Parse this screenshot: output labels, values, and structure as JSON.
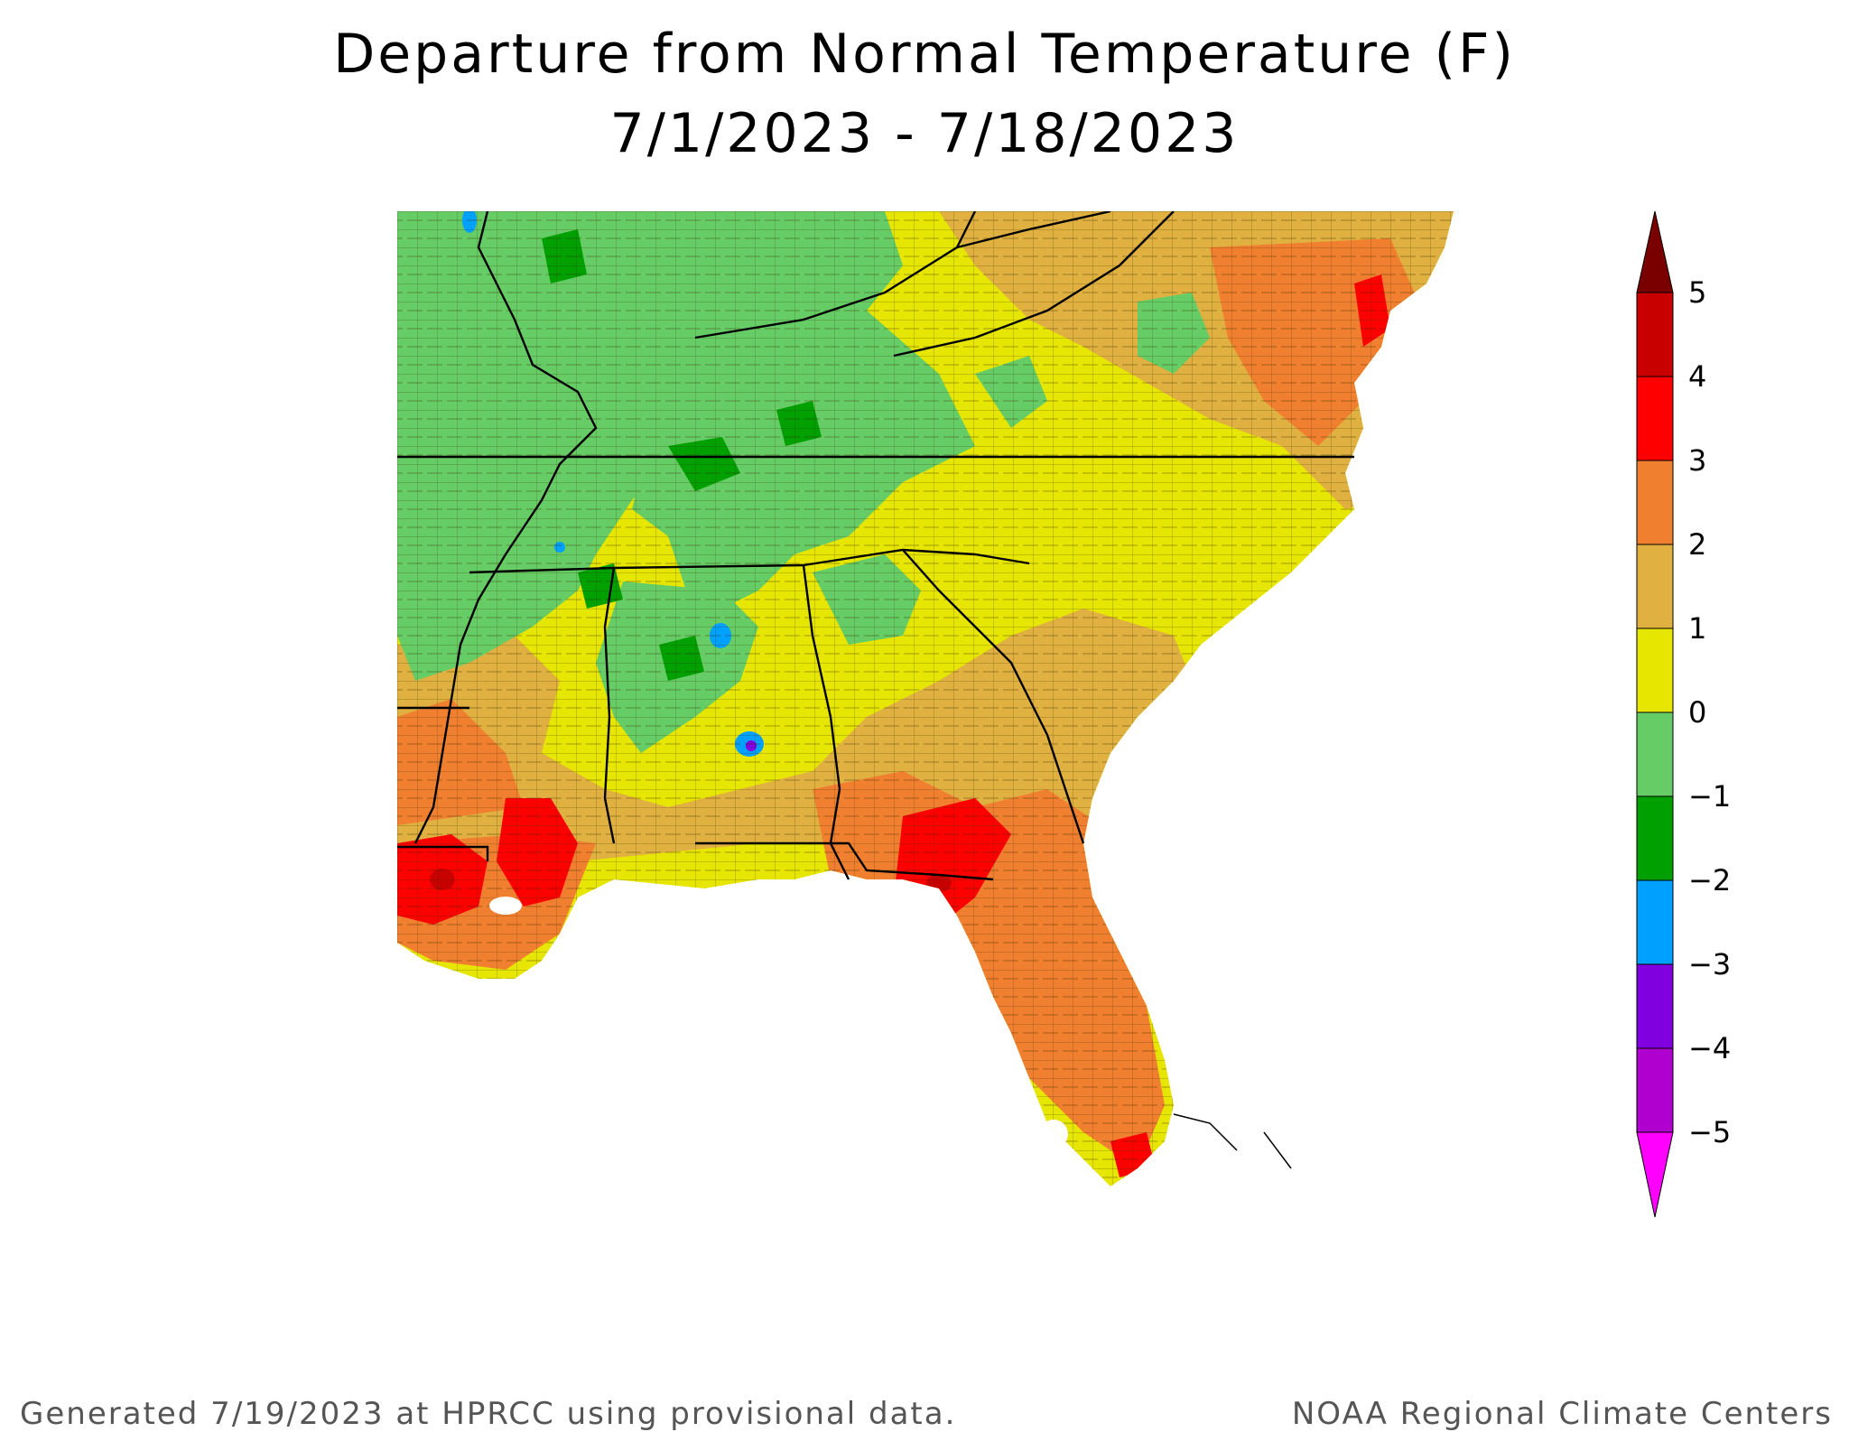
{
  "title": "Departure from Normal Temperature (F)",
  "date_range": "7/1/2023 - 7/18/2023",
  "footer_left": "Generated 7/19/2023 at HPRCC using provisional data.",
  "footer_right": "NOAA Regional Climate Centers",
  "legend": {
    "bins": [
      {
        "label": "5",
        "color": "#7a0000"
      },
      {
        "label": "4",
        "color": "#c80000"
      },
      {
        "label": "3",
        "color": "#ff0000"
      },
      {
        "label": "2",
        "color": "#f08030"
      },
      {
        "label": "1",
        "color": "#e0b040"
      },
      {
        "label": "0",
        "color": "#e6e600"
      },
      {
        "label": "−1",
        "color": "#66cc66"
      },
      {
        "label": "−2",
        "color": "#00a000"
      },
      {
        "label": "−3",
        "color": "#00a0ff"
      },
      {
        "label": "−4",
        "color": "#8000e0"
      },
      {
        "label": "−5",
        "color": "#b000d0"
      }
    ],
    "overflow_color": "#ff00ff"
  },
  "colors": {
    "state_border": "#000000",
    "county_border": "#3a2a00",
    "water": "#ffffff"
  }
}
